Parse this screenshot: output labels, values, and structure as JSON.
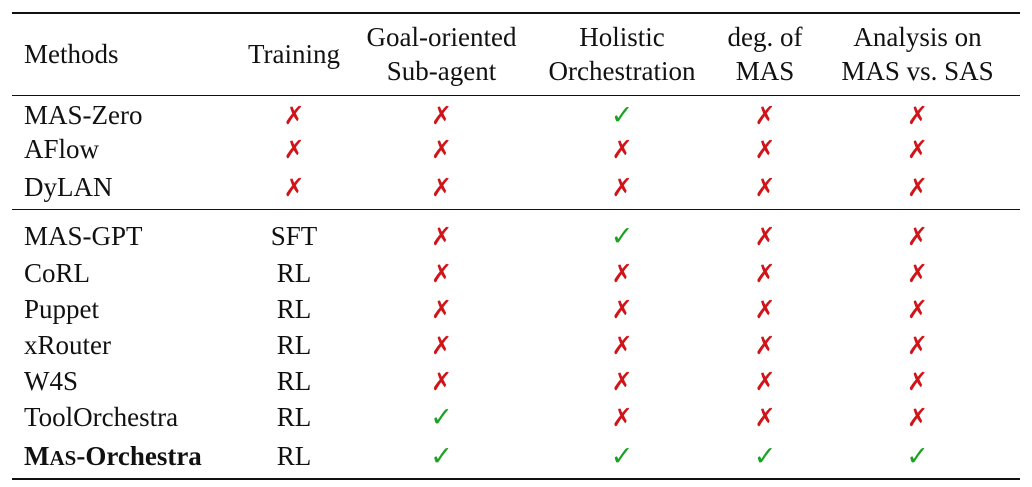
{
  "headers": {
    "methods": "Methods",
    "training": "Training",
    "goal_l1": "Goal-oriented",
    "goal_l2": "Sub-agent",
    "holistic_l1": "Holistic",
    "holistic_l2": "Orchestration",
    "deg_l1": "deg. of",
    "deg_l2": "MAS",
    "analysis_l1": "Analysis on",
    "analysis_l2": "MAS vs. SAS"
  },
  "marks": {
    "yes": "✓",
    "no": "✗"
  },
  "group1": [
    {
      "method": "MAS-Zero",
      "training": "no",
      "goal": "no",
      "holistic": "yes",
      "deg": "no",
      "analysis": "no"
    },
    {
      "method": "AFlow",
      "training": "no",
      "goal": "no",
      "holistic": "no",
      "deg": "no",
      "analysis": "no"
    },
    {
      "method": "DyLAN",
      "training": "no",
      "goal": "no",
      "holistic": "no",
      "deg": "no",
      "analysis": "no"
    }
  ],
  "group2": [
    {
      "method": "MAS-GPT",
      "training": "SFT",
      "goal": "no",
      "holistic": "yes",
      "deg": "no",
      "analysis": "no"
    },
    {
      "method": "CoRL",
      "training": "RL",
      "goal": "no",
      "holistic": "no",
      "deg": "no",
      "analysis": "no"
    },
    {
      "method": "Puppet",
      "training": "RL",
      "goal": "no",
      "holistic": "no",
      "deg": "no",
      "analysis": "no"
    },
    {
      "method": "xRouter",
      "training": "RL",
      "goal": "no",
      "holistic": "no",
      "deg": "no",
      "analysis": "no"
    },
    {
      "method": "W4S",
      "training": "RL",
      "goal": "no",
      "holistic": "no",
      "deg": "no",
      "analysis": "no"
    },
    {
      "method": "ToolOrchestra",
      "training": "RL",
      "goal": "yes",
      "holistic": "no",
      "deg": "no",
      "analysis": "no"
    }
  ],
  "ours": {
    "method_m": "M",
    "method_as": "AS",
    "method_rest": "-Orchestra",
    "training": "RL",
    "goal": "yes",
    "holistic": "yes",
    "deg": "yes",
    "analysis": "yes"
  }
}
